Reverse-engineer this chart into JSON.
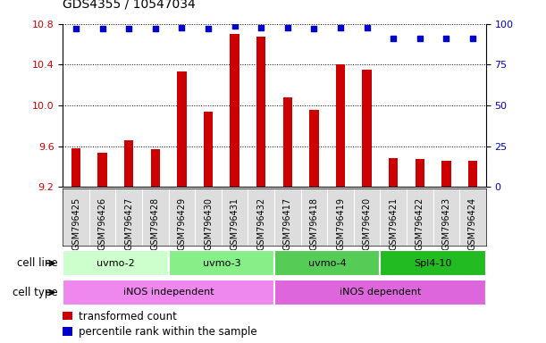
{
  "title": "GDS4355 / 10547034",
  "samples": [
    "GSM796425",
    "GSM796426",
    "GSM796427",
    "GSM796428",
    "GSM796429",
    "GSM796430",
    "GSM796431",
    "GSM796432",
    "GSM796417",
    "GSM796418",
    "GSM796419",
    "GSM796420",
    "GSM796421",
    "GSM796422",
    "GSM796423",
    "GSM796424"
  ],
  "bar_values": [
    9.58,
    9.54,
    9.66,
    9.57,
    10.33,
    9.94,
    10.7,
    10.68,
    10.08,
    9.96,
    10.4,
    10.35,
    9.48,
    9.47,
    9.46,
    9.46
  ],
  "dot_values": [
    97,
    97,
    97,
    97,
    98,
    97,
    99,
    98,
    98,
    97,
    98,
    98,
    91,
    91,
    91,
    91
  ],
  "ylim_left": [
    9.2,
    10.8
  ],
  "ylim_right": [
    0,
    100
  ],
  "yticks_left": [
    9.2,
    9.6,
    10.0,
    10.4,
    10.8
  ],
  "yticks_right": [
    0,
    25,
    50,
    75,
    100
  ],
  "bar_color": "#cc0000",
  "dot_color": "#0000cc",
  "cell_line_groups": [
    {
      "label": "uvmo-2",
      "start": 0,
      "end": 4,
      "color": "#ccffcc"
    },
    {
      "label": "uvmo-3",
      "start": 4,
      "end": 8,
      "color": "#88ee88"
    },
    {
      "label": "uvmo-4",
      "start": 8,
      "end": 12,
      "color": "#55cc55"
    },
    {
      "label": "Spl4-10",
      "start": 12,
      "end": 16,
      "color": "#22bb22"
    }
  ],
  "cell_type_groups": [
    {
      "label": "iNOS independent",
      "start": 0,
      "end": 8,
      "color": "#ee88ee"
    },
    {
      "label": "iNOS dependent",
      "start": 8,
      "end": 16,
      "color": "#dd66dd"
    }
  ],
  "cell_line_label": "cell line",
  "cell_type_label": "cell type",
  "legend_items": [
    {
      "color": "#cc0000",
      "label": "transformed count"
    },
    {
      "color": "#0000cc",
      "label": "percentile rank within the sample"
    }
  ],
  "grid_color": "black",
  "bar_width": 0.35,
  "xticklabel_fontsize": 7,
  "yticklabel_fontsize": 8,
  "title_fontsize": 10
}
